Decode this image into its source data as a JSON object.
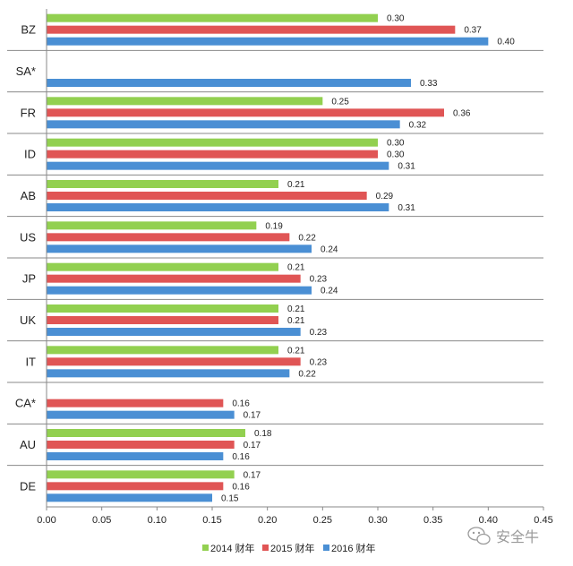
{
  "chart_data": {
    "type": "bar",
    "orientation": "horizontal",
    "categories": [
      "BZ",
      "SA*",
      "FR",
      "ID",
      "AB",
      "US",
      "JP",
      "UK",
      "IT",
      "CA*",
      "AU",
      "DE"
    ],
    "series": [
      {
        "name": "2014 财年",
        "color": "#92d050",
        "values": [
          0.3,
          null,
          0.25,
          0.3,
          0.21,
          0.19,
          0.21,
          0.21,
          0.21,
          null,
          0.18,
          0.17
        ]
      },
      {
        "name": "2015 财年",
        "color": "#e05555",
        "values": [
          0.37,
          null,
          0.36,
          0.3,
          0.29,
          0.22,
          0.23,
          0.21,
          0.23,
          0.16,
          0.17,
          0.16
        ]
      },
      {
        "name": "2016 财年",
        "color": "#4a8fd4",
        "values": [
          0.4,
          0.33,
          0.32,
          0.31,
          0.31,
          0.24,
          0.24,
          0.23,
          0.22,
          0.17,
          0.16,
          0.15
        ]
      }
    ],
    "xlim": [
      0,
      0.45
    ],
    "xticks": [
      "0.00",
      "0.05",
      "0.10",
      "0.15",
      "0.20",
      "0.25",
      "0.30",
      "0.35",
      "0.40",
      "0.45"
    ],
    "legend_position": "bottom-center",
    "grid": false
  },
  "watermark": {
    "text": "安全牛",
    "icon": "wechat-icon"
  }
}
